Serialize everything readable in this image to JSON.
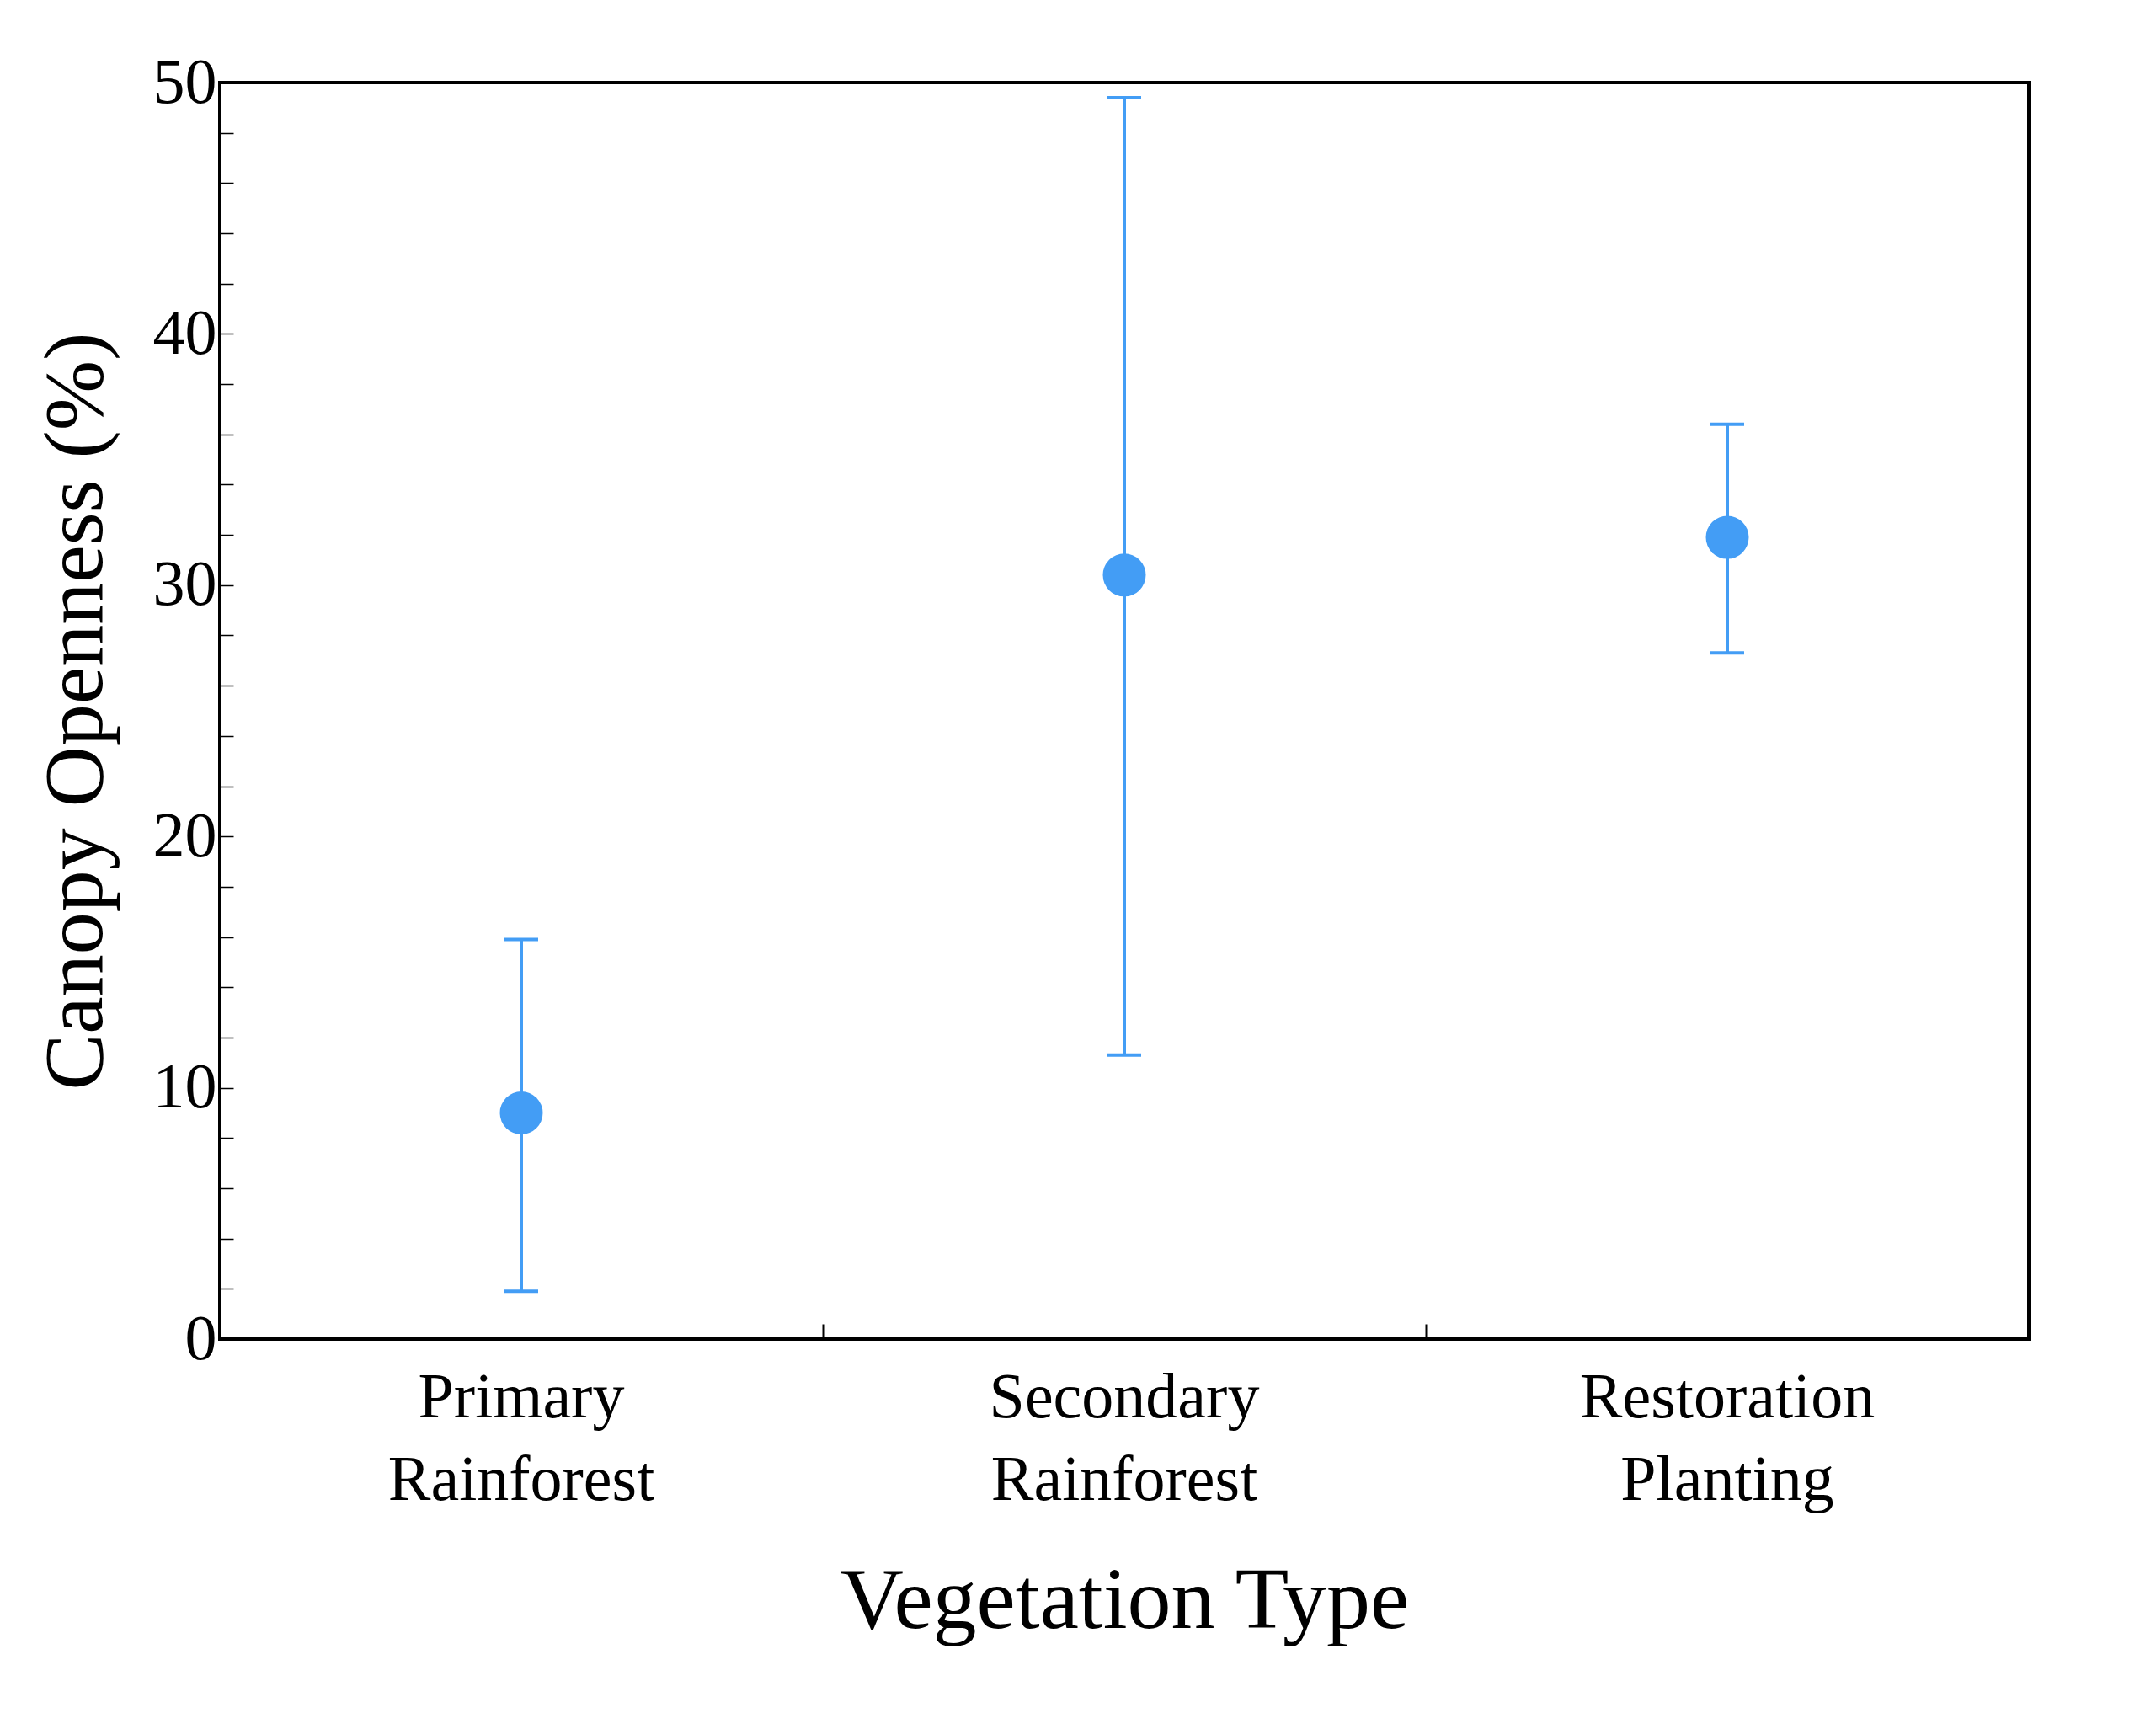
{
  "chart_data": {
    "type": "scatter",
    "xlabel": "Vegetation Type",
    "ylabel": "Canopy Openness (%)",
    "categories": [
      "Primary Rainforest",
      "Secondary Rainforest",
      "Restoration Planting"
    ],
    "series": [
      {
        "color": "#439df5",
        "values": [
          9.0,
          30.4,
          31.9
        ],
        "errors": [
          [
            1.9,
            15.9
          ],
          [
            11.3,
            49.4
          ],
          [
            27.3,
            36.4
          ]
        ]
      }
    ],
    "ylim": [
      0,
      50
    ],
    "yticks": [
      0,
      {
        "value": 2,
        "label": null
      },
      {
        "value": 4,
        "label": null
      },
      {
        "value": 6,
        "label": null
      },
      {
        "value": 8,
        "label": null
      },
      10,
      {
        "value": 12,
        "label": null
      },
      {
        "value": 14,
        "label": null
      },
      {
        "value": 16,
        "label": null
      },
      {
        "value": 18,
        "label": null
      },
      20,
      {
        "value": 22,
        "label": null
      },
      {
        "value": 24,
        "label": null
      },
      {
        "value": 26,
        "label": null
      },
      {
        "value": 28,
        "label": null
      },
      30,
      {
        "value": 32,
        "label": null
      },
      {
        "value": 34,
        "label": null
      },
      {
        "value": 36,
        "label": null
      },
      {
        "value": 38,
        "label": null
      },
      40,
      {
        "value": 42,
        "label": null
      },
      {
        "value": 44,
        "label": null
      },
      {
        "value": 46,
        "label": null
      },
      {
        "value": 48,
        "label": null
      },
      50
    ],
    "grid": false,
    "marker": "circle"
  }
}
